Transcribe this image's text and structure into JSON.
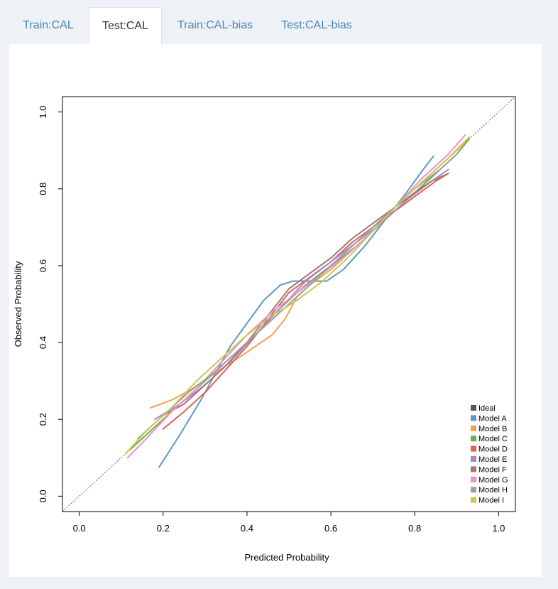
{
  "tabs": [
    {
      "label": "Train:CAL",
      "active": false
    },
    {
      "label": "Test:CAL",
      "active": true
    },
    {
      "label": "Train:CAL-bias",
      "active": false
    },
    {
      "label": "Test:CAL-bias",
      "active": false
    }
  ],
  "chart_data": {
    "type": "line",
    "title": "",
    "xlabel": "Predicted Probability",
    "ylabel": "Observed  Probability",
    "xlim": [
      -0.04,
      1.04
    ],
    "ylim": [
      -0.04,
      1.04
    ],
    "xticks": [
      "0.0",
      "0.2",
      "0.4",
      "0.6",
      "0.8",
      "1.0"
    ],
    "yticks": [
      "0.0",
      "0.2",
      "0.4",
      "0.6",
      "0.8",
      "1.0"
    ],
    "legend_position": "bottom-right",
    "ideal": {
      "name": "Ideal",
      "color": "#555555",
      "x": [
        -0.04,
        1.04
      ],
      "y": [
        -0.04,
        1.04
      ]
    },
    "series": [
      {
        "name": "Model A",
        "color": "#5b9ac6",
        "x": [
          0.19,
          0.24,
          0.29,
          0.32,
          0.36,
          0.4,
          0.44,
          0.48,
          0.51,
          0.55,
          0.59,
          0.63,
          0.68,
          0.73,
          0.78,
          0.82,
          0.845
        ],
        "y": [
          0.075,
          0.16,
          0.25,
          0.31,
          0.39,
          0.45,
          0.51,
          0.55,
          0.56,
          0.56,
          0.56,
          0.59,
          0.65,
          0.72,
          0.79,
          0.85,
          0.885
        ]
      },
      {
        "name": "Model B",
        "color": "#f6a150",
        "x": [
          0.17,
          0.22,
          0.27,
          0.31,
          0.35,
          0.38,
          0.42,
          0.46,
          0.49,
          0.52,
          0.55,
          0.6,
          0.65,
          0.7,
          0.75,
          0.8,
          0.85,
          0.9,
          0.93
        ],
        "y": [
          0.23,
          0.25,
          0.28,
          0.31,
          0.34,
          0.36,
          0.39,
          0.42,
          0.46,
          0.52,
          0.55,
          0.59,
          0.64,
          0.69,
          0.75,
          0.8,
          0.85,
          0.9,
          0.93
        ]
      },
      {
        "name": "Model C",
        "color": "#6ab04c",
        "x": [
          0.12,
          0.18,
          0.24,
          0.3,
          0.36,
          0.42,
          0.48,
          0.54,
          0.6,
          0.66,
          0.72,
          0.78,
          0.84,
          0.9,
          0.93
        ],
        "y": [
          0.12,
          0.18,
          0.24,
          0.3,
          0.36,
          0.42,
          0.49,
          0.55,
          0.6,
          0.65,
          0.71,
          0.77,
          0.83,
          0.89,
          0.93
        ]
      },
      {
        "name": "Model D",
        "color": "#e06060",
        "x": [
          0.2,
          0.25,
          0.3,
          0.35,
          0.4,
          0.45,
          0.5,
          0.55,
          0.6,
          0.65,
          0.7,
          0.75,
          0.8,
          0.85,
          0.88
        ],
        "y": [
          0.175,
          0.22,
          0.27,
          0.33,
          0.39,
          0.46,
          0.53,
          0.57,
          0.61,
          0.66,
          0.7,
          0.74,
          0.78,
          0.82,
          0.84
        ]
      },
      {
        "name": "Model E",
        "color": "#a887c9",
        "x": [
          0.18,
          0.24,
          0.3,
          0.36,
          0.42,
          0.48,
          0.54,
          0.6,
          0.66,
          0.72,
          0.78,
          0.84,
          0.88
        ],
        "y": [
          0.2,
          0.24,
          0.29,
          0.35,
          0.42,
          0.49,
          0.56,
          0.61,
          0.66,
          0.71,
          0.77,
          0.82,
          0.85
        ]
      },
      {
        "name": "Model F",
        "color": "#a07a6c",
        "x": [
          0.2,
          0.25,
          0.3,
          0.35,
          0.4,
          0.45,
          0.5,
          0.55,
          0.6,
          0.65,
          0.7,
          0.75,
          0.8,
          0.84,
          0.88
        ],
        "y": [
          0.21,
          0.24,
          0.29,
          0.34,
          0.4,
          0.47,
          0.54,
          0.58,
          0.62,
          0.67,
          0.71,
          0.75,
          0.79,
          0.82,
          0.84
        ]
      },
      {
        "name": "Model G",
        "color": "#ee8fd0",
        "x": [
          0.115,
          0.16,
          0.22,
          0.28,
          0.34,
          0.4,
          0.46,
          0.52,
          0.58,
          0.64,
          0.7,
          0.76,
          0.82,
          0.88,
          0.92
        ],
        "y": [
          0.1,
          0.15,
          0.22,
          0.28,
          0.35,
          0.42,
          0.48,
          0.53,
          0.58,
          0.63,
          0.69,
          0.76,
          0.83,
          0.89,
          0.94
        ]
      },
      {
        "name": "Model H",
        "color": "#9e9e9e",
        "x": [
          0.14,
          0.2,
          0.26,
          0.32,
          0.38,
          0.44,
          0.5,
          0.56,
          0.62,
          0.68,
          0.74,
          0.8,
          0.86,
          0.9
        ],
        "y": [
          0.15,
          0.21,
          0.27,
          0.32,
          0.38,
          0.44,
          0.5,
          0.56,
          0.62,
          0.68,
          0.74,
          0.8,
          0.85,
          0.89
        ]
      },
      {
        "name": "Model I",
        "color": "#c8c850",
        "x": [
          0.11,
          0.16,
          0.22,
          0.28,
          0.34,
          0.4,
          0.46,
          0.52,
          0.58,
          0.64,
          0.7,
          0.76,
          0.82,
          0.88,
          0.93
        ],
        "y": [
          0.11,
          0.17,
          0.23,
          0.3,
          0.36,
          0.42,
          0.47,
          0.51,
          0.56,
          0.62,
          0.69,
          0.76,
          0.82,
          0.88,
          0.935
        ]
      }
    ]
  }
}
